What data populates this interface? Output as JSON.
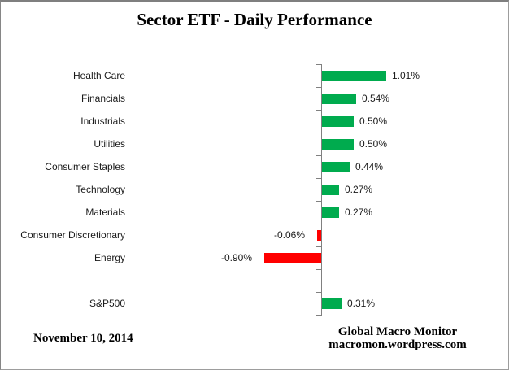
{
  "colors": {
    "positive_bar": "#00AB4E",
    "negative_bar": "#FF0000",
    "axis": "#808080",
    "text": "#1a1a1a",
    "frame_border": "#8C8C8C"
  },
  "footer": {
    "date": "November 10, 2014",
    "credit_line1": "Global Macro Monitor",
    "credit_line2": "macromon.wordpress.com"
  },
  "chart_data": {
    "type": "bar",
    "orientation": "horizontal",
    "title": "Sector ETF - Daily Performance",
    "xlabel": "",
    "ylabel": "",
    "xlim": [
      -1.0,
      1.25
    ],
    "gridlines": false,
    "legend": false,
    "value_label_format": "0.00%",
    "categories": [
      "Health Care",
      "Financials",
      "Industrials",
      "Utilities",
      "Consumer Staples",
      "Technology",
      "Materials",
      "Consumer Discretionary",
      "Energy",
      "",
      "S&P500"
    ],
    "values": [
      1.01,
      0.54,
      0.5,
      0.5,
      0.44,
      0.27,
      0.27,
      -0.06,
      -0.9,
      null,
      0.31
    ],
    "rows": [
      {
        "category": "Health Care",
        "value": 1.01,
        "label": "1.01%"
      },
      {
        "category": "Financials",
        "value": 0.54,
        "label": "0.54%"
      },
      {
        "category": "Industrials",
        "value": 0.5,
        "label": "0.50%"
      },
      {
        "category": "Utilities",
        "value": 0.5,
        "label": "0.50%"
      },
      {
        "category": "Consumer Staples",
        "value": 0.44,
        "label": "0.44%"
      },
      {
        "category": "Technology",
        "value": 0.27,
        "label": "0.27%"
      },
      {
        "category": "Materials",
        "value": 0.27,
        "label": "0.27%"
      },
      {
        "category": "Consumer Discretionary",
        "value": -0.06,
        "label": "-0.06%"
      },
      {
        "category": "Energy",
        "value": -0.9,
        "label": "-0.90%"
      },
      {
        "category": "",
        "value": null,
        "label": ""
      },
      {
        "category": "S&P500",
        "value": 0.31,
        "label": "0.31%"
      }
    ]
  }
}
